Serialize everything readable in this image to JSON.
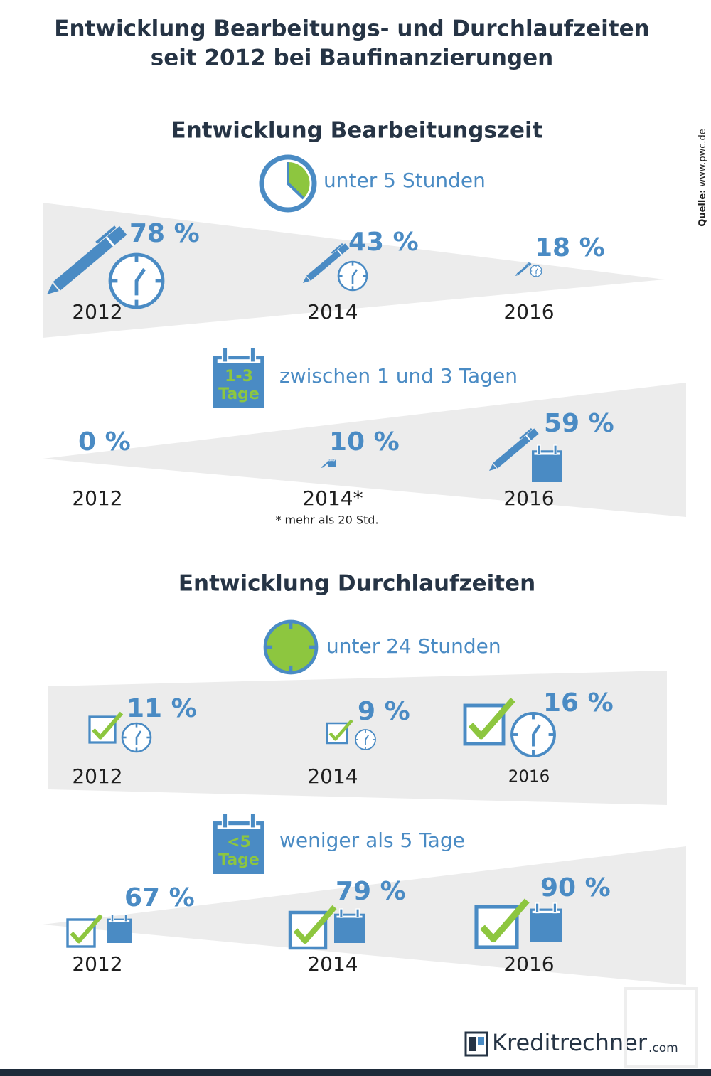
{
  "header": {
    "title": [
      "Entwicklung Bearbeitungs- und Durchlaufzeiten",
      "seit 2012 bei Baufinanzierungen"
    ]
  },
  "source": {
    "label": "Quelle:",
    "url": "www.pwc.de"
  },
  "sections": [
    {
      "heading": "Entwicklung Bearbeitungszeit",
      "groups": [
        {
          "legend": "unter 5 Stunden",
          "items": [
            {
              "percent": "78 %",
              "year": "2012"
            },
            {
              "percent": "43 %",
              "year": "2014"
            },
            {
              "percent": "18 %",
              "year": "2016"
            }
          ]
        },
        {
          "legend": "zwischen 1 und 3 Tagen",
          "icon_text": [
            "1-3",
            "Tage"
          ],
          "items": [
            {
              "percent": "0 %",
              "year": "2012"
            },
            {
              "percent": "10 %",
              "year": "2014*"
            },
            {
              "percent": "59 %",
              "year": "2016"
            }
          ],
          "note": "* mehr als 20 Std."
        }
      ]
    },
    {
      "heading": "Entwicklung Durchlaufzeiten",
      "groups": [
        {
          "legend": "unter 24 Stunden",
          "items": [
            {
              "percent": "11 %",
              "year": "2012"
            },
            {
              "percent": "9 %",
              "year": "2014"
            },
            {
              "percent": "16 %",
              "year": "2016"
            }
          ]
        },
        {
          "legend": "weniger als 5 Tage",
          "icon_text": [
            "<5",
            "Tage"
          ],
          "items": [
            {
              "percent": "67 %",
              "year": "2012"
            },
            {
              "percent": "79 %",
              "year": "2014"
            },
            {
              "percent": "90 %",
              "year": "2016"
            }
          ]
        }
      ]
    }
  ],
  "logo": {
    "name": "Kreditrechner",
    "suffix": ".com"
  }
}
